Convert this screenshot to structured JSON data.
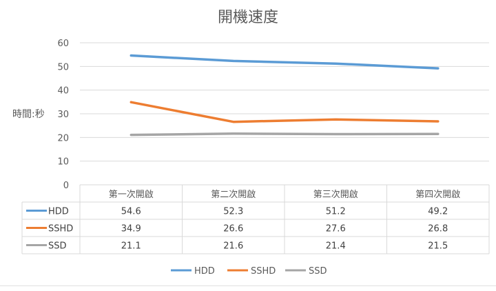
{
  "chart_data": {
    "type": "line",
    "title": "開機速度",
    "ylabel": "時間:秒",
    "xlabel": "",
    "ylim": [
      0,
      60
    ],
    "yticks": [
      0,
      10,
      20,
      30,
      40,
      50,
      60
    ],
    "categories": [
      "第一次開啟",
      "第二次開啟",
      "第三次開啟",
      "第四次開啟"
    ],
    "series": [
      {
        "name": "HDD",
        "values": [
          54.6,
          52.3,
          51.2,
          49.2
        ],
        "color": "#5b9bd5"
      },
      {
        "name": "SSHD",
        "values": [
          34.9,
          26.6,
          27.6,
          26.8
        ],
        "color": "#ed7d31"
      },
      {
        "name": "SSD",
        "values": [
          21.1,
          21.6,
          21.4,
          21.5
        ],
        "color": "#a5a5a5"
      }
    ],
    "grid": true,
    "legend": "bottom",
    "data_table": true
  }
}
